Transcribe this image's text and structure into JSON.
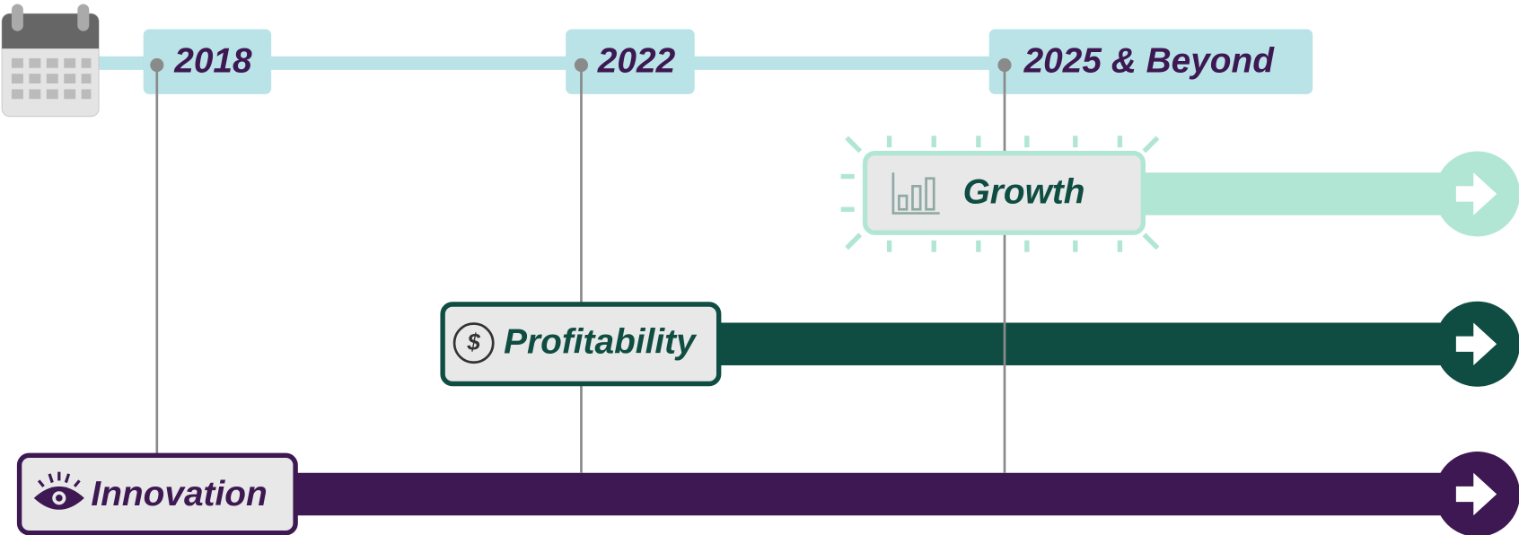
{
  "timeline": {
    "years": [
      "2018",
      "2022",
      "2025 & Beyond"
    ]
  },
  "lanes": [
    {
      "label": "Growth"
    },
    {
      "label": "Profitability"
    },
    {
      "label": "Innovation"
    }
  ]
}
